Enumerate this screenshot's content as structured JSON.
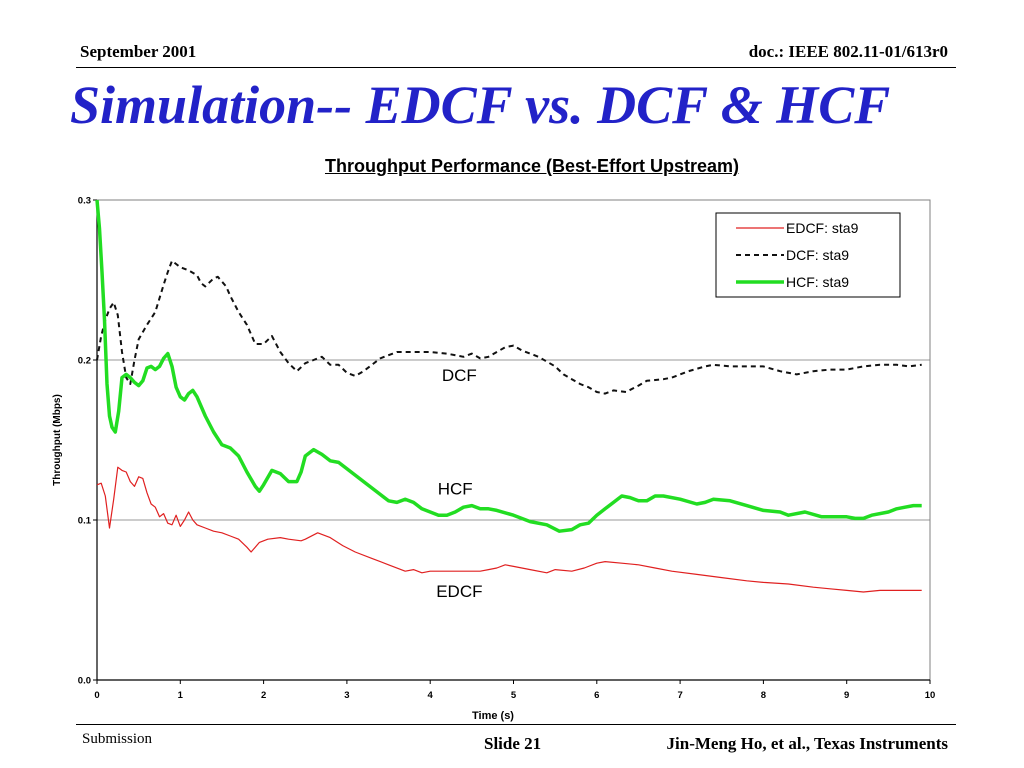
{
  "header": {
    "date": "September 2001",
    "doc": "doc.: IEEE 802.11-01/613r0"
  },
  "slide_title": "Simulation-- EDCF vs. DCF  & HCF",
  "footer": {
    "submission": "Submission",
    "slide": "Slide 21",
    "author": "Jin-Meng Ho, et al., Texas Instruments"
  },
  "chart_data": {
    "type": "line",
    "title": "Throughput Performance (Best-Effort Upstream)",
    "xlabel": "Time (s)",
    "ylabel": "Throughput (Mbps)",
    "xlim": [
      0,
      10
    ],
    "ylim": [
      0,
      0.3
    ],
    "x_ticks": [
      "0",
      "1",
      "2",
      "3",
      "4",
      "5",
      "6",
      "7",
      "8",
      "9",
      "10"
    ],
    "y_ticks": [
      "0.0",
      "0.1",
      "0.2",
      "0.3"
    ],
    "grid": "horizontal",
    "legend_position": "top-right",
    "annotations": [
      {
        "text": "DCF",
        "x": 4.35,
        "y": 0.187
      },
      {
        "text": "HCF",
        "x": 4.3,
        "y": 0.116
      },
      {
        "text": "EDCF",
        "x": 4.35,
        "y": 0.052
      }
    ],
    "series": [
      {
        "name": "EDCF: sta9",
        "color": "#e02020",
        "style": "solid",
        "points": [
          [
            0.0,
            0.122
          ],
          [
            0.05,
            0.123
          ],
          [
            0.1,
            0.115
          ],
          [
            0.15,
            0.095
          ],
          [
            0.2,
            0.113
          ],
          [
            0.25,
            0.133
          ],
          [
            0.3,
            0.131
          ],
          [
            0.35,
            0.13
          ],
          [
            0.4,
            0.124
          ],
          [
            0.45,
            0.121
          ],
          [
            0.5,
            0.127
          ],
          [
            0.55,
            0.126
          ],
          [
            0.6,
            0.117
          ],
          [
            0.65,
            0.11
          ],
          [
            0.7,
            0.108
          ],
          [
            0.75,
            0.102
          ],
          [
            0.8,
            0.104
          ],
          [
            0.85,
            0.098
          ],
          [
            0.9,
            0.097
          ],
          [
            0.95,
            0.103
          ],
          [
            1.0,
            0.096
          ],
          [
            1.05,
            0.1
          ],
          [
            1.1,
            0.105
          ],
          [
            1.15,
            0.1
          ],
          [
            1.2,
            0.097
          ],
          [
            1.3,
            0.095
          ],
          [
            1.4,
            0.093
          ],
          [
            1.5,
            0.092
          ],
          [
            1.6,
            0.09
          ],
          [
            1.7,
            0.088
          ],
          [
            1.8,
            0.083
          ],
          [
            1.85,
            0.08
          ],
          [
            1.95,
            0.086
          ],
          [
            2.05,
            0.088
          ],
          [
            2.2,
            0.089
          ],
          [
            2.3,
            0.088
          ],
          [
            2.45,
            0.087
          ],
          [
            2.5,
            0.088
          ],
          [
            2.65,
            0.092
          ],
          [
            2.8,
            0.089
          ],
          [
            2.95,
            0.084
          ],
          [
            3.1,
            0.08
          ],
          [
            3.3,
            0.076
          ],
          [
            3.5,
            0.072
          ],
          [
            3.7,
            0.068
          ],
          [
            3.8,
            0.069
          ],
          [
            3.9,
            0.067
          ],
          [
            4.0,
            0.068
          ],
          [
            4.2,
            0.068
          ],
          [
            4.4,
            0.068
          ],
          [
            4.6,
            0.068
          ],
          [
            4.7,
            0.069
          ],
          [
            4.8,
            0.07
          ],
          [
            4.9,
            0.072
          ],
          [
            5.0,
            0.071
          ],
          [
            5.2,
            0.069
          ],
          [
            5.4,
            0.067
          ],
          [
            5.5,
            0.069
          ],
          [
            5.7,
            0.068
          ],
          [
            5.85,
            0.07
          ],
          [
            6.0,
            0.073
          ],
          [
            6.1,
            0.074
          ],
          [
            6.3,
            0.073
          ],
          [
            6.5,
            0.072
          ],
          [
            6.7,
            0.07
          ],
          [
            6.9,
            0.068
          ],
          [
            7.2,
            0.066
          ],
          [
            7.5,
            0.064
          ],
          [
            7.8,
            0.062
          ],
          [
            8.0,
            0.061
          ],
          [
            8.3,
            0.06
          ],
          [
            8.6,
            0.058
          ],
          [
            8.8,
            0.057
          ],
          [
            9.0,
            0.056
          ],
          [
            9.2,
            0.055
          ],
          [
            9.4,
            0.056
          ],
          [
            9.6,
            0.056
          ],
          [
            9.9,
            0.056
          ]
        ]
      },
      {
        "name": "DCF: sta9",
        "color": "#111111",
        "style": "dashed",
        "points": [
          [
            0.0,
            0.2
          ],
          [
            0.05,
            0.215
          ],
          [
            0.1,
            0.225
          ],
          [
            0.15,
            0.232
          ],
          [
            0.2,
            0.236
          ],
          [
            0.25,
            0.228
          ],
          [
            0.3,
            0.205
          ],
          [
            0.35,
            0.189
          ],
          [
            0.4,
            0.185
          ],
          [
            0.45,
            0.2
          ],
          [
            0.5,
            0.213
          ],
          [
            0.6,
            0.222
          ],
          [
            0.7,
            0.23
          ],
          [
            0.8,
            0.247
          ],
          [
            0.85,
            0.255
          ],
          [
            0.9,
            0.262
          ],
          [
            0.95,
            0.26
          ],
          [
            1.0,
            0.258
          ],
          [
            1.1,
            0.256
          ],
          [
            1.2,
            0.253
          ],
          [
            1.25,
            0.248
          ],
          [
            1.3,
            0.246
          ],
          [
            1.4,
            0.251
          ],
          [
            1.45,
            0.252
          ],
          [
            1.55,
            0.246
          ],
          [
            1.6,
            0.24
          ],
          [
            1.7,
            0.23
          ],
          [
            1.8,
            0.222
          ],
          [
            1.9,
            0.21
          ],
          [
            2.0,
            0.21
          ],
          [
            2.1,
            0.215
          ],
          [
            2.2,
            0.205
          ],
          [
            2.3,
            0.198
          ],
          [
            2.4,
            0.193
          ],
          [
            2.5,
            0.198
          ],
          [
            2.6,
            0.2
          ],
          [
            2.7,
            0.202
          ],
          [
            2.8,
            0.197
          ],
          [
            2.9,
            0.197
          ],
          [
            3.0,
            0.192
          ],
          [
            3.1,
            0.19
          ],
          [
            3.2,
            0.193
          ],
          [
            3.3,
            0.197
          ],
          [
            3.4,
            0.201
          ],
          [
            3.5,
            0.203
          ],
          [
            3.6,
            0.205
          ],
          [
            3.8,
            0.205
          ],
          [
            4.0,
            0.205
          ],
          [
            4.2,
            0.204
          ],
          [
            4.4,
            0.202
          ],
          [
            4.5,
            0.204
          ],
          [
            4.6,
            0.201
          ],
          [
            4.7,
            0.202
          ],
          [
            4.8,
            0.205
          ],
          [
            4.9,
            0.208
          ],
          [
            5.0,
            0.209
          ],
          [
            5.1,
            0.206
          ],
          [
            5.3,
            0.202
          ],
          [
            5.5,
            0.196
          ],
          [
            5.6,
            0.191
          ],
          [
            5.7,
            0.188
          ],
          [
            5.8,
            0.185
          ],
          [
            5.9,
            0.183
          ],
          [
            6.0,
            0.18
          ],
          [
            6.1,
            0.179
          ],
          [
            6.2,
            0.181
          ],
          [
            6.35,
            0.18
          ],
          [
            6.5,
            0.184
          ],
          [
            6.6,
            0.187
          ],
          [
            6.8,
            0.188
          ],
          [
            6.9,
            0.189
          ],
          [
            7.1,
            0.193
          ],
          [
            7.3,
            0.196
          ],
          [
            7.4,
            0.197
          ],
          [
            7.6,
            0.196
          ],
          [
            7.8,
            0.196
          ],
          [
            8.0,
            0.196
          ],
          [
            8.2,
            0.193
          ],
          [
            8.4,
            0.191
          ],
          [
            8.6,
            0.193
          ],
          [
            8.8,
            0.194
          ],
          [
            9.0,
            0.194
          ],
          [
            9.2,
            0.196
          ],
          [
            9.4,
            0.197
          ],
          [
            9.6,
            0.197
          ],
          [
            9.75,
            0.196
          ],
          [
            9.9,
            0.197
          ]
        ]
      },
      {
        "name": "HCF: sta9",
        "color": "#22dd22",
        "style": "solid",
        "points": [
          [
            0.0,
            0.3
          ],
          [
            0.03,
            0.282
          ],
          [
            0.06,
            0.255
          ],
          [
            0.09,
            0.225
          ],
          [
            0.12,
            0.185
          ],
          [
            0.15,
            0.165
          ],
          [
            0.18,
            0.158
          ],
          [
            0.22,
            0.155
          ],
          [
            0.26,
            0.168
          ],
          [
            0.3,
            0.189
          ],
          [
            0.35,
            0.191
          ],
          [
            0.4,
            0.189
          ],
          [
            0.45,
            0.186
          ],
          [
            0.5,
            0.184
          ],
          [
            0.55,
            0.187
          ],
          [
            0.6,
            0.195
          ],
          [
            0.65,
            0.196
          ],
          [
            0.7,
            0.194
          ],
          [
            0.75,
            0.196
          ],
          [
            0.8,
            0.201
          ],
          [
            0.85,
            0.204
          ],
          [
            0.9,
            0.196
          ],
          [
            0.95,
            0.183
          ],
          [
            1.0,
            0.177
          ],
          [
            1.05,
            0.175
          ],
          [
            1.1,
            0.179
          ],
          [
            1.15,
            0.181
          ],
          [
            1.2,
            0.177
          ],
          [
            1.3,
            0.165
          ],
          [
            1.4,
            0.155
          ],
          [
            1.5,
            0.147
          ],
          [
            1.6,
            0.145
          ],
          [
            1.7,
            0.14
          ],
          [
            1.8,
            0.13
          ],
          [
            1.9,
            0.121
          ],
          [
            1.95,
            0.118
          ],
          [
            2.0,
            0.122
          ],
          [
            2.1,
            0.131
          ],
          [
            2.2,
            0.129
          ],
          [
            2.3,
            0.124
          ],
          [
            2.4,
            0.124
          ],
          [
            2.45,
            0.13
          ],
          [
            2.5,
            0.14
          ],
          [
            2.6,
            0.144
          ],
          [
            2.7,
            0.141
          ],
          [
            2.8,
            0.137
          ],
          [
            2.9,
            0.136
          ],
          [
            3.0,
            0.132
          ],
          [
            3.2,
            0.124
          ],
          [
            3.4,
            0.116
          ],
          [
            3.5,
            0.112
          ],
          [
            3.6,
            0.111
          ],
          [
            3.7,
            0.113
          ],
          [
            3.8,
            0.111
          ],
          [
            3.9,
            0.107
          ],
          [
            4.0,
            0.105
          ],
          [
            4.1,
            0.103
          ],
          [
            4.2,
            0.103
          ],
          [
            4.3,
            0.105
          ],
          [
            4.4,
            0.108
          ],
          [
            4.5,
            0.109
          ],
          [
            4.6,
            0.107
          ],
          [
            4.7,
            0.107
          ],
          [
            4.8,
            0.106
          ],
          [
            5.0,
            0.103
          ],
          [
            5.2,
            0.099
          ],
          [
            5.4,
            0.097
          ],
          [
            5.55,
            0.093
          ],
          [
            5.7,
            0.094
          ],
          [
            5.8,
            0.097
          ],
          [
            5.9,
            0.098
          ],
          [
            6.0,
            0.103
          ],
          [
            6.1,
            0.107
          ],
          [
            6.2,
            0.111
          ],
          [
            6.3,
            0.115
          ],
          [
            6.4,
            0.114
          ],
          [
            6.5,
            0.112
          ],
          [
            6.6,
            0.112
          ],
          [
            6.7,
            0.115
          ],
          [
            6.8,
            0.115
          ],
          [
            7.0,
            0.113
          ],
          [
            7.2,
            0.11
          ],
          [
            7.3,
            0.111
          ],
          [
            7.4,
            0.113
          ],
          [
            7.6,
            0.112
          ],
          [
            7.8,
            0.109
          ],
          [
            8.0,
            0.106
          ],
          [
            8.2,
            0.105
          ],
          [
            8.3,
            0.103
          ],
          [
            8.5,
            0.105
          ],
          [
            8.7,
            0.102
          ],
          [
            9.0,
            0.102
          ],
          [
            9.1,
            0.101
          ],
          [
            9.2,
            0.101
          ],
          [
            9.3,
            0.103
          ],
          [
            9.5,
            0.105
          ],
          [
            9.6,
            0.107
          ],
          [
            9.7,
            0.108
          ],
          [
            9.8,
            0.109
          ],
          [
            9.9,
            0.109
          ]
        ]
      }
    ]
  }
}
